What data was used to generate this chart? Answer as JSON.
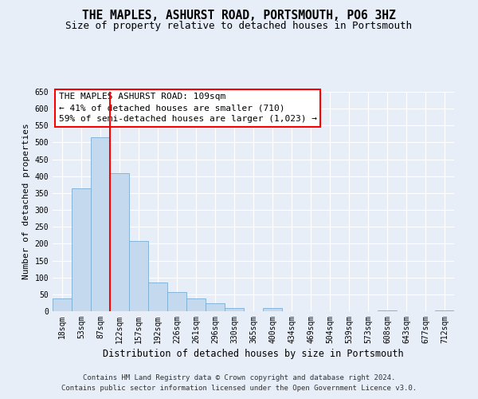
{
  "title": "THE MAPLES, ASHURST ROAD, PORTSMOUTH, PO6 3HZ",
  "subtitle": "Size of property relative to detached houses in Portsmouth",
  "xlabel": "Distribution of detached houses by size in Portsmouth",
  "ylabel": "Number of detached properties",
  "bar_labels": [
    "18sqm",
    "53sqm",
    "87sqm",
    "122sqm",
    "157sqm",
    "192sqm",
    "226sqm",
    "261sqm",
    "296sqm",
    "330sqm",
    "365sqm",
    "400sqm",
    "434sqm",
    "469sqm",
    "504sqm",
    "539sqm",
    "573sqm",
    "608sqm",
    "643sqm",
    "677sqm",
    "712sqm"
  ],
  "bar_values": [
    38,
    365,
    515,
    410,
    207,
    84,
    56,
    37,
    24,
    10,
    0,
    10,
    0,
    0,
    0,
    0,
    0,
    2,
    0,
    0,
    2
  ],
  "bar_color": "#c5d9ee",
  "bar_edge_color": "#7aaed4",
  "vline_x": 2.5,
  "vline_color": "red",
  "annotation_text": "THE MAPLES ASHURST ROAD: 109sqm\n← 41% of detached houses are smaller (710)\n59% of semi-detached houses are larger (1,023) →",
  "annotation_box_color": "white",
  "annotation_box_edge": "red",
  "ylim": [
    0,
    650
  ],
  "yticks": [
    0,
    50,
    100,
    150,
    200,
    250,
    300,
    350,
    400,
    450,
    500,
    550,
    600,
    650
  ],
  "background_color": "#e8eef8",
  "grid_color": "white",
  "footer_line1": "Contains HM Land Registry data © Crown copyright and database right 2024.",
  "footer_line2": "Contains public sector information licensed under the Open Government Licence v3.0.",
  "title_fontsize": 10.5,
  "subtitle_fontsize": 9,
  "xlabel_fontsize": 8.5,
  "ylabel_fontsize": 8,
  "tick_fontsize": 7,
  "annotation_fontsize": 8,
  "footer_fontsize": 6.5
}
